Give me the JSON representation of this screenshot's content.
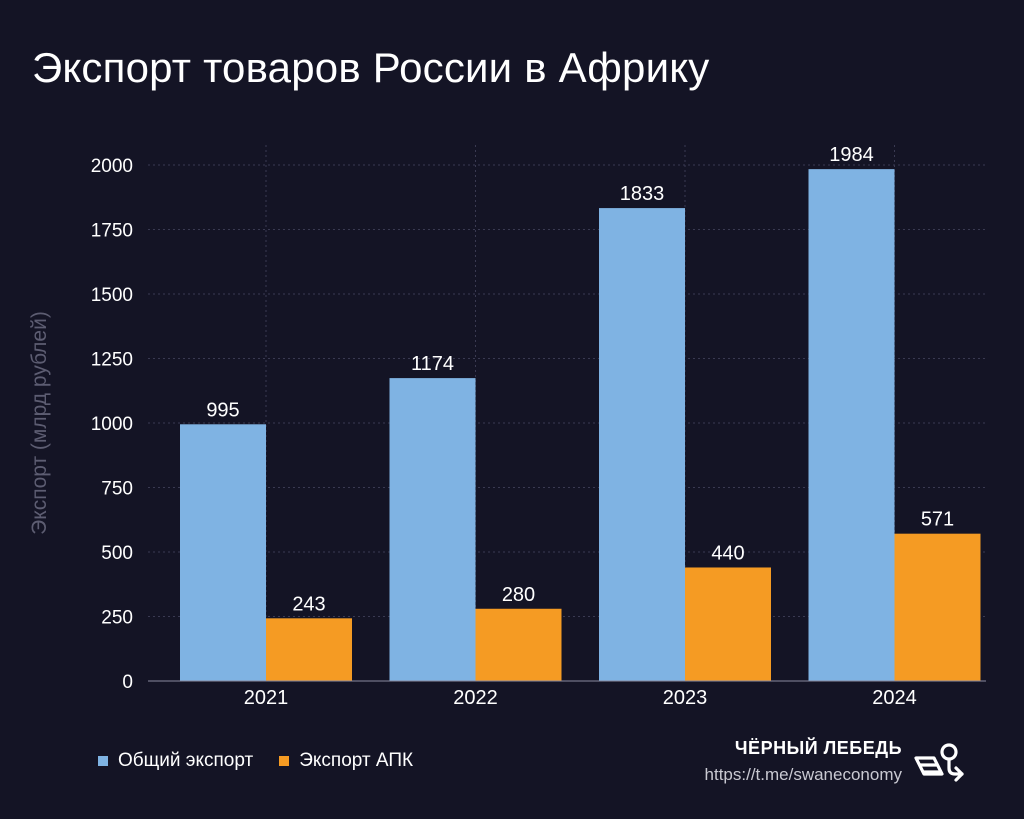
{
  "title": "Экспорт товаров России в Африку",
  "chart_data": {
    "type": "bar",
    "categories": [
      "2021",
      "2022",
      "2023",
      "2024"
    ],
    "series": [
      {
        "name": "Общий экспорт",
        "values": [
          995,
          1174,
          1833,
          1984
        ],
        "color": "#7fb3e3"
      },
      {
        "name": "Экспорт АПК",
        "values": [
          243,
          280,
          440,
          571
        ],
        "color": "#f59b23"
      }
    ],
    "ylabel": "Экспорт (млрд рублей)",
    "ylim": [
      0,
      2000
    ],
    "yticks": [
      "0",
      "250",
      "500",
      "750",
      "1000",
      "1250",
      "1500",
      "1750",
      "2000"
    ],
    "grid": true,
    "legend_position": "bottom-left"
  },
  "brand": {
    "name": "ЧЁРНЫЙ ЛЕБЕДЬ",
    "url": "https://t.me/swaneconomy",
    "logo_icon": "swan-logo-icon"
  }
}
